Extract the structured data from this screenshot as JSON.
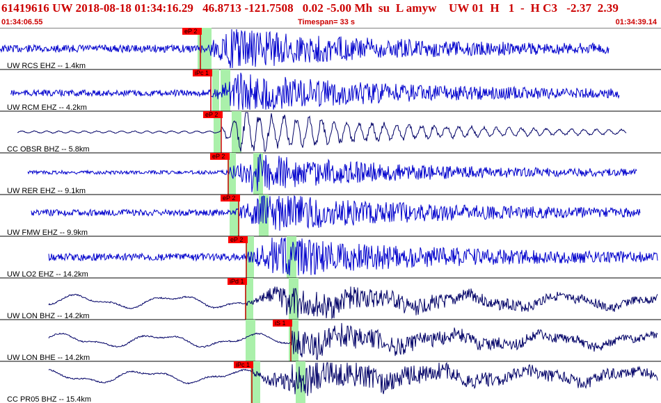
{
  "header": {
    "title": "61419616 UW 2018-08-18 01:34:16.29   46.8713 -121.7508   0.02 -5.00 Mh  su  L amyw    UW 01  H   1  -  H C3   -2.37  2.39",
    "start_time": "01:34:06.55",
    "timespan": "Timespan=  33 s",
    "end_time": "01:34:39.14"
  },
  "colors": {
    "header_text": "#cc0000",
    "trace_blue": "#0000cc",
    "trace_dark": "#000066",
    "pick_box": "#ff0000",
    "pick_line": "#cc0000",
    "window_green": "#aaf0aa"
  },
  "traces": [
    {
      "label": "UW RCS EHZ -- 1.4km",
      "color": "#0000cc",
      "pick": "eP 2"
    },
    {
      "label": "UW RCM EHZ -- 4.2km",
      "color": "#0000cc",
      "pick": "iPc 1"
    },
    {
      "label": "CC OBSR BHZ -- 5.8km",
      "color": "#000066",
      "pick": "eP 2"
    },
    {
      "label": "UW RER EHZ -- 9.1km",
      "color": "#0000cc",
      "pick": "eP 2"
    },
    {
      "label": "UW FMW EHZ -- 9.9km",
      "color": "#0000cc",
      "pick": "eP 2"
    },
    {
      "label": "UW LO2 EHZ -- 14.2km",
      "color": "#0000cc",
      "pick": "eP 2"
    },
    {
      "label": "UW LON BHZ -- 14.2km",
      "color": "#000066",
      "pick": "iPd 1"
    },
    {
      "label": "UW LON BHE -- 14.2km",
      "color": "#000066",
      "pick": "iS 1"
    },
    {
      "label": "CC PR05 BHZ -- 15.4km",
      "color": "#000066",
      "pick": "iPc 1"
    }
  ]
}
